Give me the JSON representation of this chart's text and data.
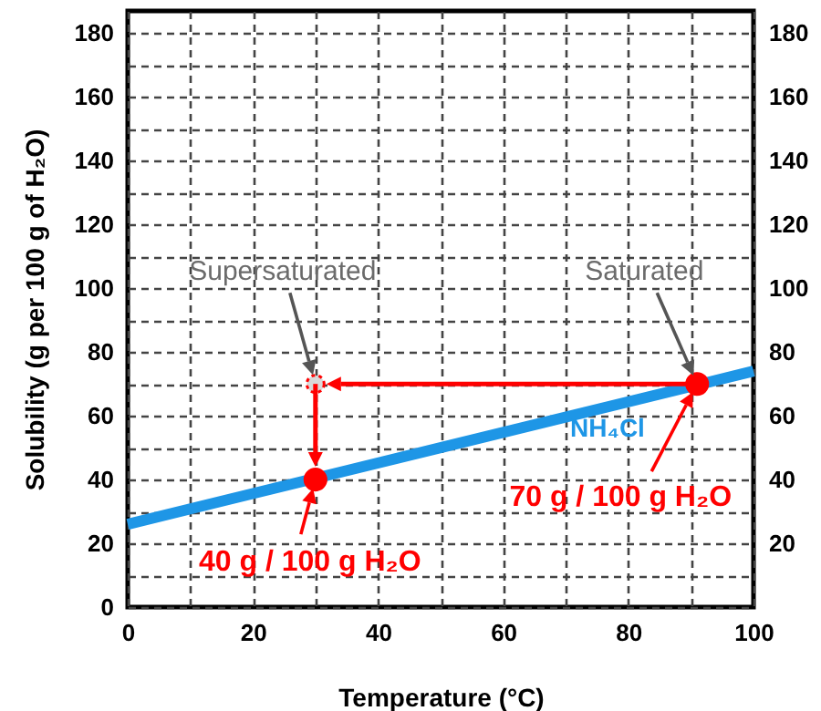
{
  "chart_data": {
    "type": "line",
    "xlabel": "Temperature (°C)",
    "ylabel": "Solubility (g per 100 g of H₂O)",
    "xlim": [
      0,
      100
    ],
    "xticks": [
      0,
      {
        "value": 10,
        "label": null
      },
      20,
      {
        "value": 30,
        "label": null
      },
      40,
      {
        "value": 50,
        "label": null
      },
      60,
      {
        "value": 70,
        "label": null
      },
      80,
      {
        "value": 90,
        "label": null
      },
      100
    ],
    "ylim": [
      0,
      187
    ],
    "yticks": [
      0,
      {
        "value": 10,
        "label": null
      },
      20,
      {
        "value": 30,
        "label": null
      },
      40,
      {
        "value": 50,
        "label": null
      },
      60,
      {
        "value": 70,
        "label": null
      },
      80,
      {
        "value": 90,
        "label": null
      },
      100,
      {
        "value": 110,
        "label": null
      },
      120,
      {
        "value": 130,
        "label": null
      },
      140,
      {
        "value": 150,
        "label": null
      },
      160,
      {
        "value": 170,
        "label": null
      },
      180
    ],
    "y2lim": [
      0,
      187
    ],
    "y2ticks": [
      20,
      40,
      60,
      80,
      100,
      120,
      140,
      160,
      180
    ],
    "grid": true,
    "series": [
      {
        "type": "line",
        "name": "NH₄Cl",
        "color": "#1e96e6",
        "x": [
          0,
          100
        ],
        "values": [
          26,
          74
        ]
      },
      {
        "type": "scatter",
        "marker": "circle",
        "color": "#ff0000",
        "x": [
          30,
          91
        ],
        "values": [
          40,
          70
        ]
      },
      {
        "type": "scatter",
        "marker": "circle",
        "color": "#d9d9d9",
        "x": [
          30
        ],
        "values": [
          70
        ]
      }
    ],
    "annotations": [
      "Supersaturated",
      "Saturated",
      {
        "text": "40 g / 100 g H₂O",
        "x": 30,
        "y": 40
      },
      "70 g / 100 g H₂O"
    ]
  }
}
